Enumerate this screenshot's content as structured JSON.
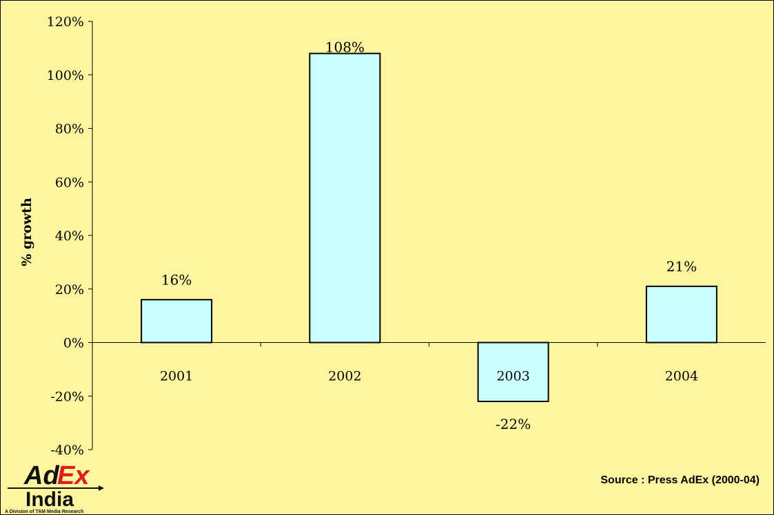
{
  "chart_data": {
    "type": "bar",
    "categories": [
      "2001",
      "2002",
      "2003",
      "2004"
    ],
    "values": [
      16,
      108,
      -22,
      21
    ],
    "data_labels": [
      "16%",
      "108%",
      "-22%",
      "21%"
    ],
    "ylabel": "% growth",
    "xlabel": "",
    "ylim": [
      -40,
      120
    ],
    "y_ticks": [
      -40,
      -20,
      0,
      20,
      40,
      60,
      80,
      100,
      120
    ],
    "y_tick_labels": [
      "-40%",
      "-20%",
      "0%",
      "20%",
      "40%",
      "60%",
      "80%",
      "100%",
      "120%"
    ],
    "grid": false,
    "legend": "none",
    "bar_color": "#ccffff",
    "background_color": "#fdf5a0"
  },
  "source_text": "Source : Press AdEx (2000-04)",
  "logo": {
    "ad": "Ad",
    "ex": "Ex",
    "india": "India",
    "division": "A Division of TAM Media Research"
  }
}
